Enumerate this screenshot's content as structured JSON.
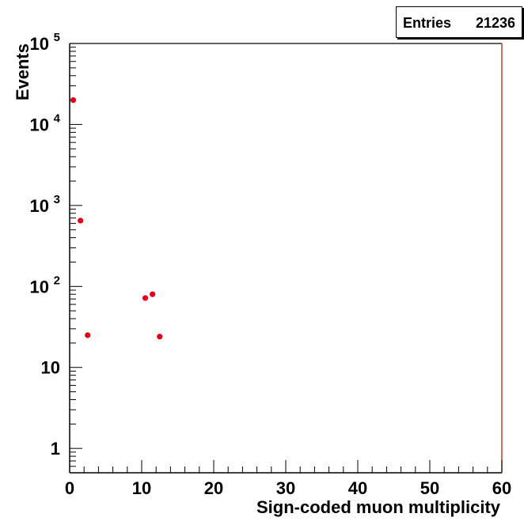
{
  "stats_box": {
    "label": "Entries",
    "value": "21236"
  },
  "chart_data": {
    "type": "scatter",
    "title": "",
    "xlabel": "Sign-coded muon multiplicity",
    "ylabel": "Events",
    "xlim": [
      0,
      60
    ],
    "ylim": [
      0.5,
      100000
    ],
    "y_scale": "log",
    "x_ticks": [
      0,
      10,
      20,
      30,
      40,
      50,
      60
    ],
    "y_ticks": [
      {
        "value": 1,
        "label": "1",
        "exp": ""
      },
      {
        "value": 10,
        "label": "10",
        "exp": ""
      },
      {
        "value": 100,
        "label": "10",
        "exp": "2"
      },
      {
        "value": 1000,
        "label": "10",
        "exp": "3"
      },
      {
        "value": 10000,
        "label": "10",
        "exp": "4"
      },
      {
        "value": 100000,
        "label": "10",
        "exp": "5"
      }
    ],
    "points": [
      {
        "x": 0.5,
        "y": 20000
      },
      {
        "x": 1.5,
        "y": 650
      },
      {
        "x": 2.5,
        "y": 25
      },
      {
        "x": 10.5,
        "y": 72
      },
      {
        "x": 11.5,
        "y": 80
      },
      {
        "x": 12.5,
        "y": 24
      }
    ],
    "grid": false,
    "marker_color": "#e3001b",
    "axis_color": "#000000",
    "right_edge_color": "#b8431f"
  }
}
